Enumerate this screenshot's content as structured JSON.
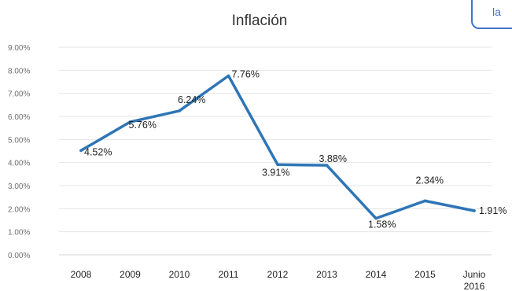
{
  "colors": {
    "series": "#2e75b6",
    "accent_box": "#4472c4"
  },
  "corner_fragment": {
    "text": "la"
  },
  "chart_data": {
    "type": "line",
    "title": "Inflación",
    "xlabel": "",
    "ylabel": "",
    "categories": [
      "2008",
      "2009",
      "2010",
      "2011",
      "2012",
      "2013",
      "2014",
      "2015",
      "Junio 2016"
    ],
    "series": [
      {
        "values": [
          4.52,
          5.76,
          6.24,
          7.76,
          3.91,
          3.88,
          1.58,
          2.34,
          1.91
        ]
      }
    ],
    "data_labels": [
      "4.52%",
      "5.76%",
      "6.24%",
      "7.76%",
      "3.91%",
      "3.88%",
      "1.58%",
      "2.34%",
      "1.91%"
    ],
    "ylim": [
      0,
      9
    ],
    "yticks": [
      0,
      1,
      2,
      3,
      4,
      5,
      6,
      7,
      8,
      9
    ],
    "ytick_labels": [
      "0.00%",
      "1.00%",
      "2.00%",
      "3.00%",
      "4.00%",
      "5.00%",
      "6.00%",
      "7.00%",
      "8.00%",
      "9.00%"
    ],
    "grid": true,
    "legend": "none"
  }
}
